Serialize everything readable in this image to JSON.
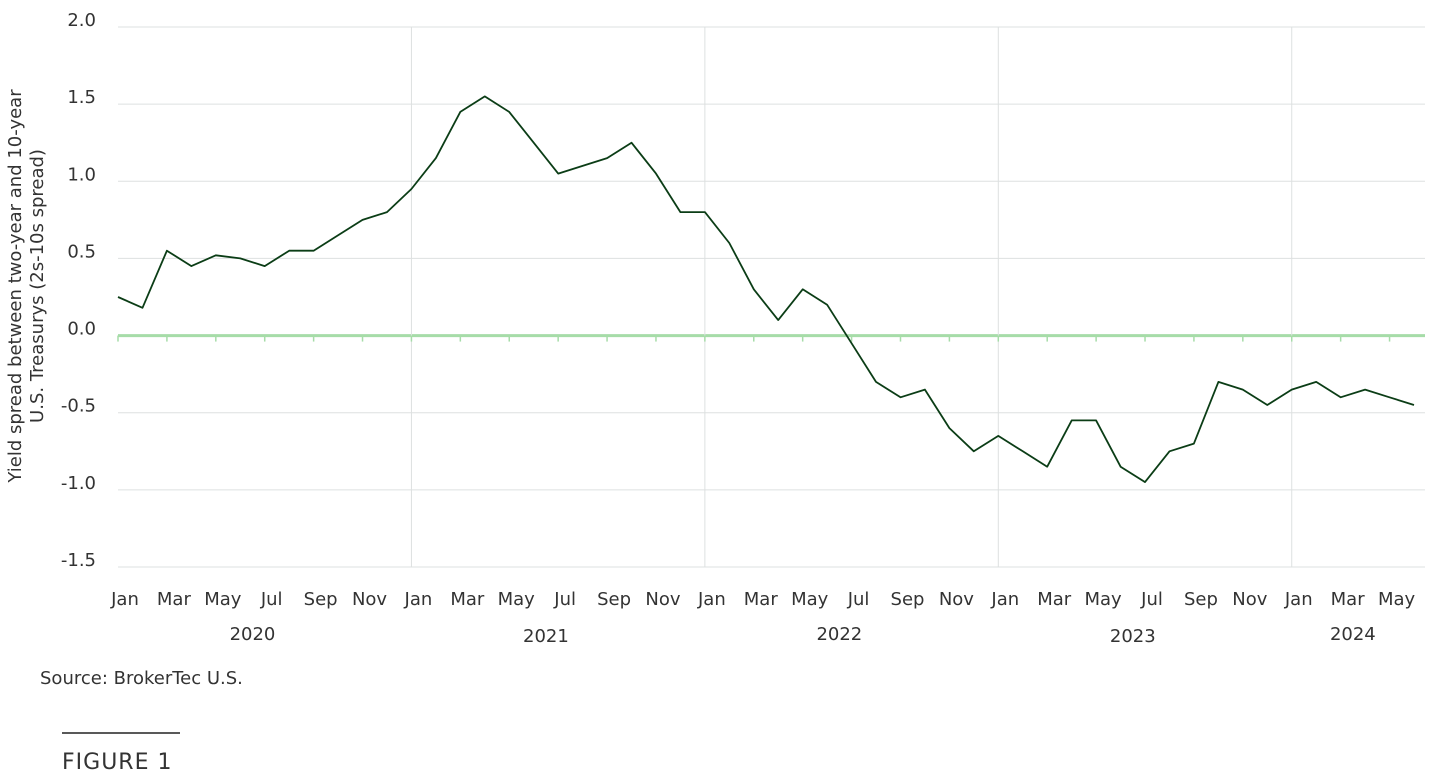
{
  "chart_data": {
    "type": "line",
    "ylabel": [
      "Yield spread between two-year and 10-year",
      "U.S. Treasurys (2s-10s spread)"
    ],
    "source": "Source: BrokerTec U.S.",
    "figure_label": "FIGURE 1",
    "x": [
      "2020-01",
      "2020-02",
      "2020-03",
      "2020-04",
      "2020-05",
      "2020-06",
      "2020-07",
      "2020-08",
      "2020-09",
      "2020-10",
      "2020-11",
      "2020-12",
      "2021-01",
      "2021-02",
      "2021-03",
      "2021-04",
      "2021-05",
      "2021-06",
      "2021-07",
      "2021-08",
      "2021-09",
      "2021-10",
      "2021-11",
      "2021-12",
      "2022-01",
      "2022-02",
      "2022-03",
      "2022-04",
      "2022-05",
      "2022-06",
      "2022-07",
      "2022-08",
      "2022-09",
      "2022-10",
      "2022-11",
      "2022-12",
      "2023-01",
      "2023-02",
      "2023-03",
      "2023-04",
      "2023-05",
      "2023-06",
      "2023-07",
      "2023-08",
      "2023-09",
      "2023-10",
      "2023-11",
      "2023-12",
      "2024-01",
      "2024-02",
      "2024-03",
      "2024-04",
      "2024-05",
      "2024-06"
    ],
    "series": [
      {
        "color": "#0b3d16",
        "values": [
          0.25,
          0.18,
          0.55,
          0.45,
          0.52,
          0.5,
          0.45,
          0.55,
          0.55,
          0.65,
          0.75,
          0.8,
          0.95,
          1.15,
          1.45,
          1.55,
          1.45,
          1.25,
          1.05,
          1.1,
          1.15,
          1.25,
          1.05,
          0.8,
          0.8,
          0.6,
          0.3,
          0.1,
          0.3,
          0.2,
          -0.05,
          -0.3,
          -0.4,
          -0.35,
          -0.6,
          -0.75,
          -0.65,
          -0.75,
          -0.85,
          -0.55,
          -0.55,
          -0.85,
          -0.95,
          -0.75,
          -0.7,
          -0.3,
          -0.35,
          -0.45,
          -0.35,
          -0.3,
          -0.4,
          -0.35,
          -0.4,
          -0.45
        ]
      }
    ],
    "xlim": [
      "2020-01",
      "2024-06"
    ],
    "xticks": [
      {
        "value": "2020-01",
        "label": "Jan"
      },
      {
        "value": "2020-03",
        "label": "Mar"
      },
      {
        "value": "2020-05",
        "label": "May"
      },
      {
        "value": "2020-07",
        "label": "Jul"
      },
      {
        "value": "2020-09",
        "label": "Sep"
      },
      {
        "value": "2020-11",
        "label": "Nov"
      },
      {
        "value": "2021-01",
        "label": "Jan"
      },
      {
        "value": "2021-03",
        "label": "Mar"
      },
      {
        "value": "2021-05",
        "label": "May"
      },
      {
        "value": "2021-07",
        "label": "Jul"
      },
      {
        "value": "2021-09",
        "label": "Sep"
      },
      {
        "value": "2021-11",
        "label": "Nov"
      },
      {
        "value": "2022-01",
        "label": "Jan"
      },
      {
        "value": "2022-03",
        "label": "Mar"
      },
      {
        "value": "2022-05",
        "label": "May"
      },
      {
        "value": "2022-07",
        "label": "Jul"
      },
      {
        "value": "2022-09",
        "label": "Sep"
      },
      {
        "value": "2022-11",
        "label": "Nov"
      },
      {
        "value": "2023-01",
        "label": "Jan"
      },
      {
        "value": "2023-03",
        "label": "Mar"
      },
      {
        "value": "2023-05",
        "label": "May"
      },
      {
        "value": "2023-07",
        "label": "Jul"
      },
      {
        "value": "2023-09",
        "label": "Sep"
      },
      {
        "value": "2023-11",
        "label": "Nov"
      },
      {
        "value": "2024-01",
        "label": "Jan"
      },
      {
        "value": "2024-03",
        "label": "Mar"
      },
      {
        "value": "2024-05",
        "label": "May"
      }
    ],
    "year_labels": [
      "2020",
      "2021",
      "2022",
      "2023",
      "2024"
    ],
    "ylim": [
      -1.5,
      2.0
    ],
    "yticks": [
      {
        "value": 2,
        "label": "2.0"
      },
      1.5,
      {
        "value": 1,
        "label": "1.0"
      },
      0.5,
      {
        "value": 0,
        "label": "0.0"
      },
      -0.5,
      {
        "value": -1,
        "label": "-1.0"
      },
      -1.5
    ],
    "grid": true,
    "zero_line_color": "#a6dca8"
  }
}
